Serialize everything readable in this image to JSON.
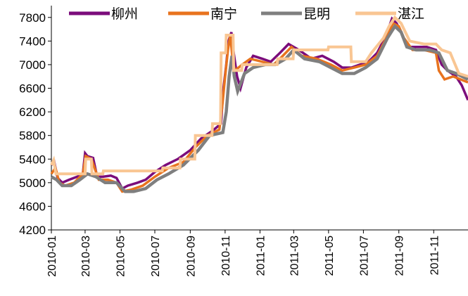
{
  "chart_data": {
    "type": "line",
    "title": "",
    "xlabel": "",
    "ylabel": "",
    "ylim": [
      4200,
      8000
    ],
    "yticks": [
      4200,
      4600,
      5000,
      5400,
      5800,
      6200,
      6600,
      7000,
      7400,
      7800
    ],
    "xtick_labels": [
      "2010-01",
      "2010-03",
      "2010-05",
      "2010-07",
      "2010-09",
      "2010-11",
      "2011-01",
      "2011-03",
      "2011-05",
      "2011-07",
      "2011-09",
      "2011-11"
    ],
    "x_range": [
      "2010-01-01",
      "2011-12-31"
    ],
    "grid": false,
    "legend_position": "top",
    "series": [
      {
        "name": "柳州",
        "color": "#7B0C7B",
        "width": 3.5,
        "points": [
          [
            "2010-01-01",
            5300
          ],
          [
            "2010-01-06",
            5350
          ],
          [
            "2010-01-12",
            5080
          ],
          [
            "2010-01-20",
            5000
          ],
          [
            "2010-02-01",
            5050
          ],
          [
            "2010-02-15",
            5100
          ],
          [
            "2010-02-25",
            5150
          ],
          [
            "2010-03-01",
            5500
          ],
          [
            "2010-03-05",
            5450
          ],
          [
            "2010-03-15",
            5420
          ],
          [
            "2010-03-22",
            5100
          ],
          [
            "2010-04-01",
            5100
          ],
          [
            "2010-04-15",
            5120
          ],
          [
            "2010-04-25",
            5080
          ],
          [
            "2010-05-05",
            4900
          ],
          [
            "2010-05-15",
            4950
          ],
          [
            "2010-06-01",
            5000
          ],
          [
            "2010-06-15",
            5050
          ],
          [
            "2010-07-01",
            5180
          ],
          [
            "2010-07-20",
            5300
          ],
          [
            "2010-08-10",
            5400
          ],
          [
            "2010-09-01",
            5550
          ],
          [
            "2010-09-20",
            5750
          ],
          [
            "2010-10-10",
            5880
          ],
          [
            "2010-10-25",
            6000
          ],
          [
            "2010-10-28",
            6500
          ],
          [
            "2010-11-03",
            7000
          ],
          [
            "2010-11-07",
            7400
          ],
          [
            "2010-11-12",
            7550
          ],
          [
            "2010-11-16",
            7200
          ],
          [
            "2010-11-22",
            6800
          ],
          [
            "2010-11-28",
            6600
          ],
          [
            "2010-12-08",
            6950
          ],
          [
            "2010-12-20",
            7150
          ],
          [
            "2011-01-05",
            7100
          ],
          [
            "2011-01-20",
            7050
          ],
          [
            "2011-02-05",
            7200
          ],
          [
            "2011-02-20",
            7350
          ],
          [
            "2011-03-10",
            7250
          ],
          [
            "2011-04-01",
            7100
          ],
          [
            "2011-04-20",
            7150
          ],
          [
            "2011-05-10",
            7050
          ],
          [
            "2011-05-25",
            6950
          ],
          [
            "2011-06-10",
            6950
          ],
          [
            "2011-06-25",
            7000
          ],
          [
            "2011-07-10",
            7050
          ],
          [
            "2011-07-25",
            7200
          ],
          [
            "2011-08-10",
            7500
          ],
          [
            "2011-08-20",
            7780
          ],
          [
            "2011-08-28",
            7700
          ],
          [
            "2011-09-05",
            7550
          ],
          [
            "2011-09-15",
            7300
          ],
          [
            "2011-10-01",
            7300
          ],
          [
            "2011-10-20",
            7300
          ],
          [
            "2011-11-05",
            7250
          ],
          [
            "2011-11-15",
            7000
          ],
          [
            "2011-11-25",
            6900
          ],
          [
            "2011-12-10",
            6800
          ],
          [
            "2011-12-20",
            6650
          ],
          [
            "2011-12-31",
            6400
          ]
        ]
      },
      {
        "name": "南宁",
        "color": "#E8731E",
        "width": 3.5,
        "points": [
          [
            "2010-01-01",
            5150
          ],
          [
            "2010-01-08",
            5250
          ],
          [
            "2010-01-15",
            5000
          ],
          [
            "2010-01-25",
            4950
          ],
          [
            "2010-02-10",
            5000
          ],
          [
            "2010-02-25",
            5150
          ],
          [
            "2010-03-02",
            5450
          ],
          [
            "2010-03-12",
            5400
          ],
          [
            "2010-03-25",
            5050
          ],
          [
            "2010-04-10",
            5050
          ],
          [
            "2010-04-25",
            5000
          ],
          [
            "2010-05-05",
            4850
          ],
          [
            "2010-05-20",
            4880
          ],
          [
            "2010-06-10",
            4950
          ],
          [
            "2010-07-01",
            5100
          ],
          [
            "2010-07-25",
            5250
          ],
          [
            "2010-08-20",
            5350
          ],
          [
            "2010-09-10",
            5600
          ],
          [
            "2010-10-01",
            5800
          ],
          [
            "2010-10-22",
            5900
          ],
          [
            "2010-10-27",
            6300
          ],
          [
            "2010-11-01",
            6800
          ],
          [
            "2010-11-06",
            7250
          ],
          [
            "2010-11-10",
            7500
          ],
          [
            "2010-11-14",
            7100
          ],
          [
            "2010-11-18",
            6900
          ],
          [
            "2010-12-01",
            7000
          ],
          [
            "2010-12-15",
            7100
          ],
          [
            "2011-01-05",
            7050
          ],
          [
            "2011-01-25",
            7000
          ],
          [
            "2011-02-10",
            7150
          ],
          [
            "2011-02-25",
            7300
          ],
          [
            "2011-03-15",
            7150
          ],
          [
            "2011-04-10",
            7100
          ],
          [
            "2011-05-05",
            7000
          ],
          [
            "2011-05-25",
            6900
          ],
          [
            "2011-06-15",
            6950
          ],
          [
            "2011-07-05",
            7000
          ],
          [
            "2011-07-25",
            7150
          ],
          [
            "2011-08-10",
            7450
          ],
          [
            "2011-08-22",
            7700
          ],
          [
            "2011-09-01",
            7650
          ],
          [
            "2011-09-10",
            7450
          ],
          [
            "2011-09-25",
            7250
          ],
          [
            "2011-10-15",
            7250
          ],
          [
            "2011-11-05",
            7200
          ],
          [
            "2011-11-10",
            6900
          ],
          [
            "2011-11-20",
            6750
          ],
          [
            "2011-12-05",
            6800
          ],
          [
            "2011-12-31",
            6700
          ]
        ]
      },
      {
        "name": "昆明",
        "color": "#7F7F7F",
        "width": 4.5,
        "points": [
          [
            "2010-01-01",
            5100
          ],
          [
            "2010-01-10",
            5050
          ],
          [
            "2010-01-20",
            4950
          ],
          [
            "2010-02-05",
            4950
          ],
          [
            "2010-02-20",
            5050
          ],
          [
            "2010-03-05",
            5150
          ],
          [
            "2010-03-20",
            5100
          ],
          [
            "2010-04-05",
            5000
          ],
          [
            "2010-04-25",
            5000
          ],
          [
            "2010-05-10",
            4850
          ],
          [
            "2010-05-25",
            4850
          ],
          [
            "2010-06-15",
            4900
          ],
          [
            "2010-07-05",
            5050
          ],
          [
            "2010-07-25",
            5150
          ],
          [
            "2010-08-20",
            5300
          ],
          [
            "2010-09-15",
            5550
          ],
          [
            "2010-10-05",
            5800
          ],
          [
            "2010-10-28",
            5850
          ],
          [
            "2010-11-03",
            6200
          ],
          [
            "2010-11-08",
            6800
          ],
          [
            "2010-11-13",
            7150
          ],
          [
            "2010-11-17",
            6800
          ],
          [
            "2010-11-23",
            6550
          ],
          [
            "2010-12-05",
            6850
          ],
          [
            "2010-12-20",
            6950
          ],
          [
            "2011-01-10",
            7000
          ],
          [
            "2011-01-28",
            7000
          ],
          [
            "2011-02-15",
            7100
          ],
          [
            "2011-03-01",
            7250
          ],
          [
            "2011-03-20",
            7100
          ],
          [
            "2011-04-15",
            7050
          ],
          [
            "2011-05-05",
            6950
          ],
          [
            "2011-05-25",
            6850
          ],
          [
            "2011-06-15",
            6850
          ],
          [
            "2011-07-05",
            6950
          ],
          [
            "2011-07-25",
            7100
          ],
          [
            "2011-08-12",
            7450
          ],
          [
            "2011-08-25",
            7650
          ],
          [
            "2011-09-05",
            7550
          ],
          [
            "2011-09-15",
            7300
          ],
          [
            "2011-10-01",
            7250
          ],
          [
            "2011-10-25",
            7250
          ],
          [
            "2011-11-10",
            7200
          ],
          [
            "2011-11-25",
            6900
          ],
          [
            "2011-12-10",
            6850
          ],
          [
            "2011-12-31",
            6750
          ]
        ]
      },
      {
        "name": "湛江",
        "color": "#F9C693",
        "width": 4,
        "points": [
          [
            "2010-01-01",
            5300
          ],
          [
            "2010-01-05",
            5380
          ],
          [
            "2010-01-09",
            5150
          ],
          [
            "2010-01-20",
            5150
          ],
          [
            "2010-02-10",
            5150
          ],
          [
            "2010-03-01",
            5150
          ],
          [
            "2010-03-02",
            5400
          ],
          [
            "2010-03-12",
            5400
          ],
          [
            "2010-03-13",
            5150
          ],
          [
            "2010-04-01",
            5150
          ],
          [
            "2010-04-02",
            5200
          ],
          [
            "2010-07-14",
            5200
          ],
          [
            "2010-07-15",
            5250
          ],
          [
            "2010-08-14",
            5250
          ],
          [
            "2010-08-15",
            5400
          ],
          [
            "2010-09-09",
            5400
          ],
          [
            "2010-09-10",
            5800
          ],
          [
            "2010-10-09",
            5800
          ],
          [
            "2010-10-10",
            6000
          ],
          [
            "2010-10-24",
            6000
          ],
          [
            "2010-10-25",
            7200
          ],
          [
            "2010-11-02",
            7200
          ],
          [
            "2010-11-03",
            7500
          ],
          [
            "2010-11-15",
            7500
          ],
          [
            "2010-11-16",
            6900
          ],
          [
            "2010-11-30",
            6900
          ],
          [
            "2010-12-01",
            7000
          ],
          [
            "2011-01-31",
            7000
          ],
          [
            "2011-02-01",
            7100
          ],
          [
            "2011-02-28",
            7100
          ],
          [
            "2011-03-01",
            7250
          ],
          [
            "2011-04-30",
            7250
          ],
          [
            "2011-05-01",
            7300
          ],
          [
            "2011-06-09",
            7300
          ],
          [
            "2011-06-10",
            7050
          ],
          [
            "2011-07-05",
            7050
          ],
          [
            "2011-07-15",
            7200
          ],
          [
            "2011-08-05",
            7450
          ],
          [
            "2011-08-15",
            7650
          ],
          [
            "2011-08-25",
            7800
          ],
          [
            "2011-09-05",
            7700
          ],
          [
            "2011-09-15",
            7500
          ],
          [
            "2011-09-20",
            7400
          ],
          [
            "2011-10-15",
            7350
          ],
          [
            "2011-11-05",
            7350
          ],
          [
            "2011-11-15",
            7250
          ],
          [
            "2011-11-30",
            7200
          ],
          [
            "2011-12-15",
            6850
          ],
          [
            "2011-12-31",
            6800
          ]
        ]
      }
    ]
  }
}
